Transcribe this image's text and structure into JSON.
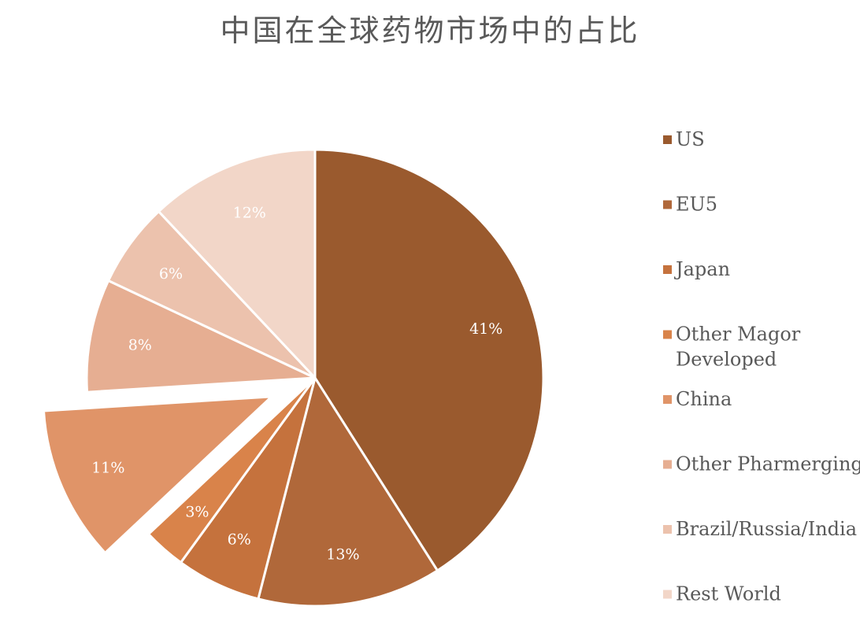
{
  "chart_data": {
    "type": "pie",
    "title": "中国在全球药物市场中的占比",
    "categories": [
      "US",
      "EU5",
      "Japan",
      "Other Magor Developed",
      "China",
      "Other Pharmerging",
      "Brazil/Russia/India",
      "Rest World"
    ],
    "values": [
      41,
      13,
      6,
      3,
      11,
      8,
      6,
      12
    ],
    "data_labels": [
      "41%",
      "13%",
      "6%",
      "3%",
      "11%",
      "8%",
      "6%",
      "12%"
    ],
    "colors": [
      "#9a5a2e",
      "#b0683a",
      "#c5723d",
      "#d9834a",
      "#e09468",
      "#e6ae92",
      "#ecc2ad",
      "#f2d6c8"
    ],
    "legend_labels": [
      [
        "US"
      ],
      [
        "EU5"
      ],
      [
        "Japan"
      ],
      [
        "Other Magor",
        "Developed"
      ],
      [
        "China"
      ],
      [
        "Other Pharmerging"
      ],
      [
        "Brazil/Russia/India"
      ],
      [
        "Rest World"
      ]
    ],
    "exploded_slice": "China",
    "start_angle": "12 o'clock",
    "direction": "clockwise",
    "legend_position": "right"
  }
}
